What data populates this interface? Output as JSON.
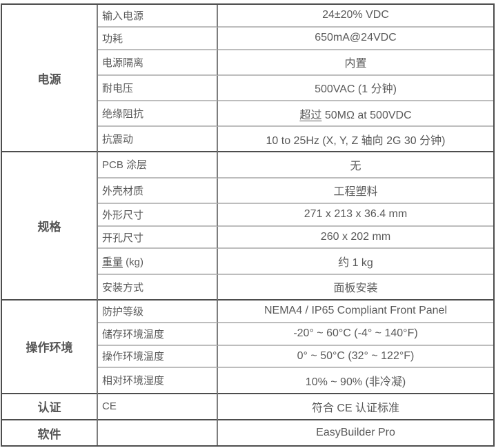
{
  "colors": {
    "background": "#ffffff",
    "text": "#5a5a5a",
    "grid_strong": "#4d4d4d",
    "grid_vertical": "#7d7d7d",
    "grid_inner": "#bdbdbd"
  },
  "table": {
    "sections": [
      {
        "category": "电源",
        "rows": [
          {
            "label": "输入电源",
            "value": "24±20% VDC"
          },
          {
            "label": "功耗",
            "value": "650mA@24VDC"
          },
          {
            "label": "电源隔离",
            "value": "内置"
          },
          {
            "label": "耐电压",
            "value": "500VAC (1 分钟)"
          },
          {
            "label": "绝缘阻抗",
            "value_underline": "超过",
            "value_rest": " 50MΩ at 500VDC"
          },
          {
            "label": "抗震动",
            "value": "10 to 25Hz (X, Y, Z 轴向 2G 30 分钟)"
          }
        ]
      },
      {
        "category": "规格",
        "rows": [
          {
            "label": "PCB 涂层",
            "value": "无"
          },
          {
            "label": "外壳材质",
            "value": "工程塑料"
          },
          {
            "label": "外形尺寸",
            "value": "271 x 213 x 36.4 mm"
          },
          {
            "label": "开孔尺寸",
            "value": "260 x 202 mm"
          },
          {
            "label_underline": "重量",
            "label_rest": " (kg)",
            "value": "约 1 kg"
          },
          {
            "label": "安装方式",
            "value": "面板安装"
          }
        ]
      },
      {
        "category": "操作环境",
        "rows": [
          {
            "label": "防护等级",
            "value": "NEMA4 / IP65 Compliant Front Panel"
          },
          {
            "label": "储存环境温度",
            "value": "-20° ~ 60°C (-4° ~ 140°F)"
          },
          {
            "label": "操作环境温度",
            "value": "0° ~ 50°C (32° ~ 122°F)"
          },
          {
            "label": "相对环境湿度",
            "value": "10% ~ 90% (非冷凝)"
          }
        ]
      },
      {
        "category": "认证",
        "rows": [
          {
            "label": "CE",
            "value": "符合 CE 认证标准"
          }
        ]
      },
      {
        "category": "软件",
        "rows": [
          {
            "label": "",
            "value": "EasyBuilder Pro"
          }
        ]
      }
    ]
  }
}
